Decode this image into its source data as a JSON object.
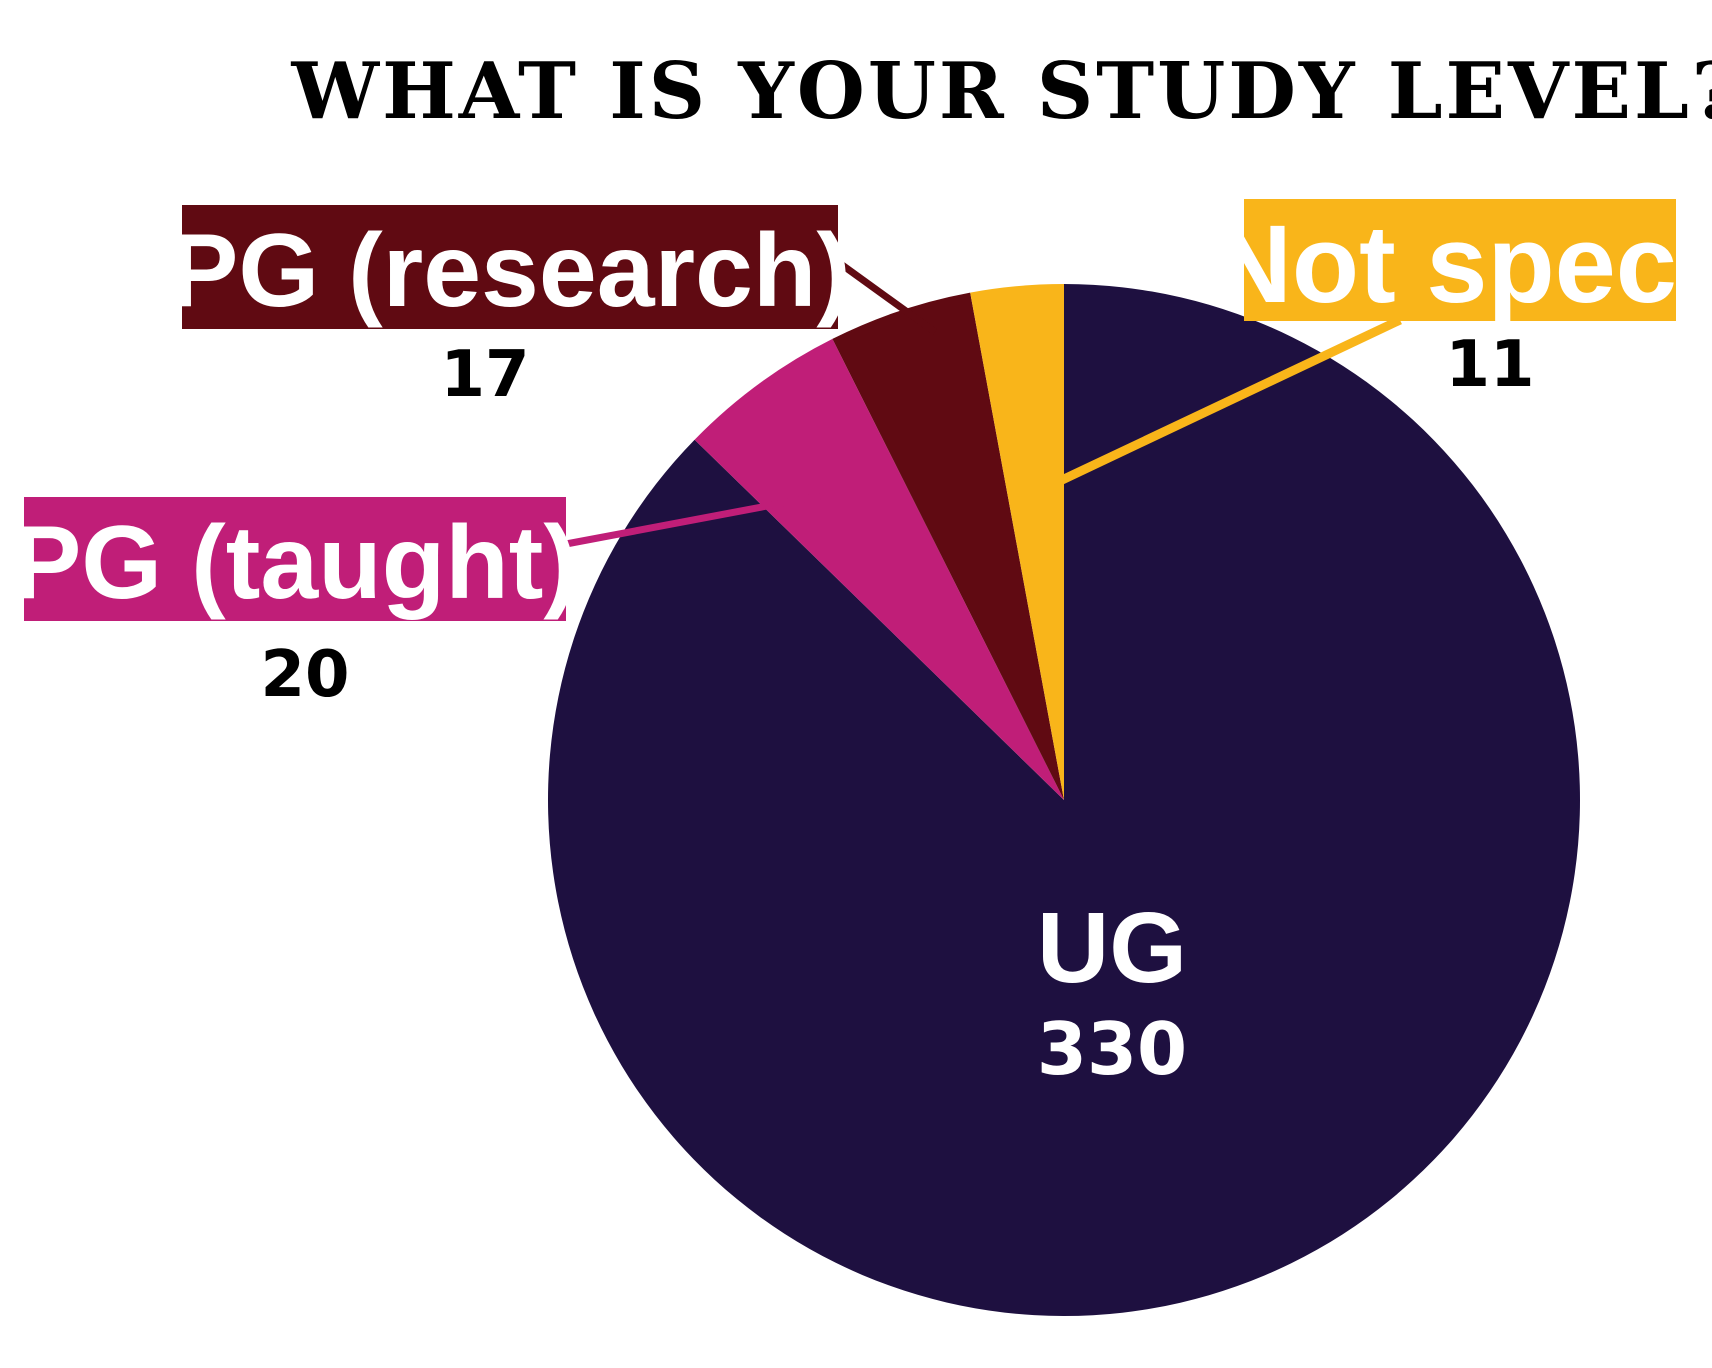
{
  "chart_data": {
    "type": "pie",
    "title": "WHAT IS YOUR STUDY LEVEL?",
    "slices": [
      {
        "label": "UG",
        "value": 330,
        "value_text": "330",
        "color": "#1e1040"
      },
      {
        "label": "PG (taught)",
        "value": 20,
        "value_text": "20",
        "color": "#c01e78"
      },
      {
        "label": "PG (research)",
        "value": 17,
        "value_text": "17",
        "color": "#600a12"
      },
      {
        "label": "Not spec.",
        "value": 11,
        "value_text": "11",
        "color": "#f9b51a"
      }
    ]
  }
}
